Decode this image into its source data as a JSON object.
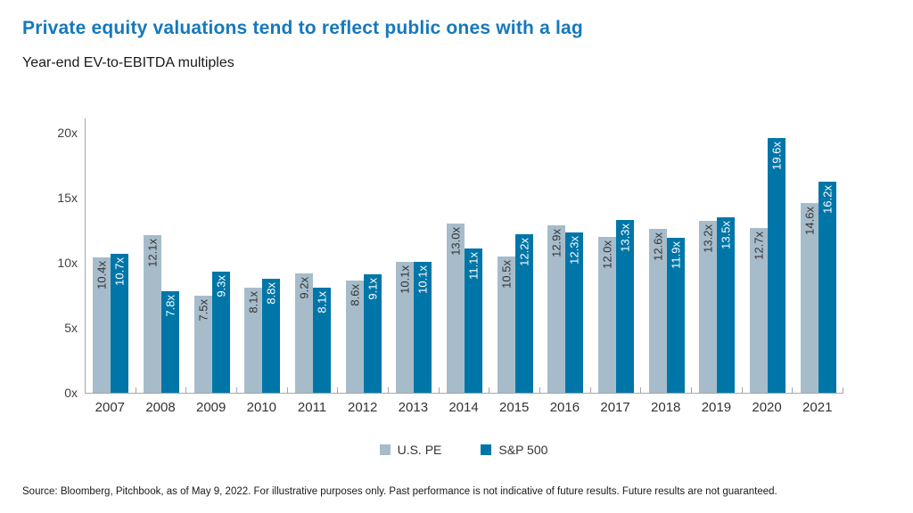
{
  "header": {
    "title": "Private equity valuations tend to reflect public ones with a lag",
    "subtitle": "Year-end EV-to-EBITDA multiples"
  },
  "chart_data": {
    "type": "bar",
    "categories": [
      "2007",
      "2008",
      "2009",
      "2010",
      "2011",
      "2012",
      "2013",
      "2014",
      "2015",
      "2016",
      "2017",
      "2018",
      "2019",
      "2020",
      "2021"
    ],
    "series": [
      {
        "name": "U.S. PE",
        "color": "#a7bcca",
        "label_color": "#333333",
        "values": [
          10.4,
          12.1,
          7.5,
          8.1,
          9.2,
          8.6,
          10.1,
          13.0,
          10.5,
          12.9,
          12.0,
          12.6,
          13.2,
          12.7,
          14.6
        ]
      },
      {
        "name": "S&P 500",
        "color": "#0076a8",
        "label_color": "#ffffff",
        "values": [
          10.7,
          7.8,
          9.3,
          8.8,
          8.1,
          9.1,
          10.1,
          11.1,
          12.2,
          12.3,
          13.3,
          11.9,
          13.5,
          19.6,
          16.2
        ]
      }
    ],
    "value_suffix": "x",
    "y_tick_values": [
      0,
      5,
      10,
      15,
      20
    ],
    "y_tick_suffix": "x",
    "ylim": [
      0,
      20
    ],
    "grid": false,
    "bar_label_rotation": "vertical",
    "legend_position": "bottom"
  },
  "footer": {
    "source": "Source: Bloomberg, Pitchbook, as of May 9, 2022. For illustrative purposes only. Past performance is not indicative of future results. Future results are not guaranteed."
  }
}
